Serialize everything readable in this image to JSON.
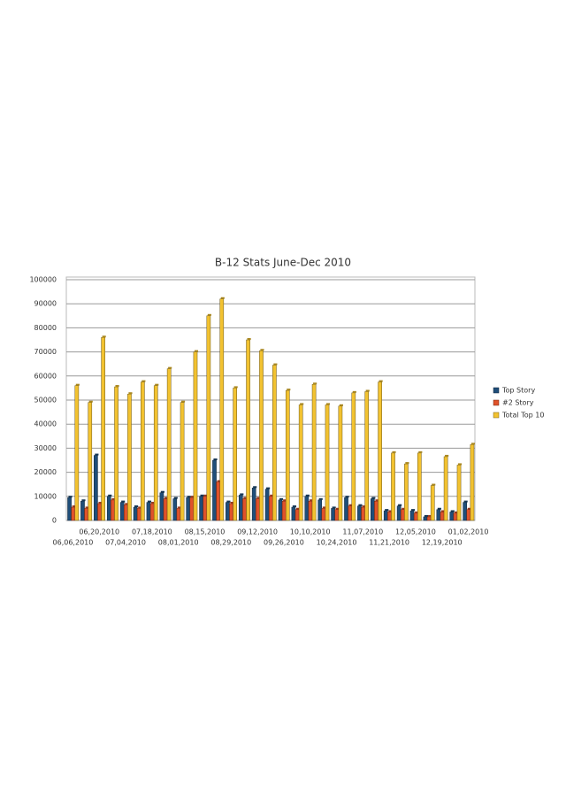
{
  "chart_data": {
    "type": "bar",
    "title": "B-12 Stats June-Dec 2010",
    "categories": [
      "06,06,2010",
      null,
      "06,20,2010",
      null,
      "07,04,2010",
      null,
      "07,18,2010",
      null,
      "08,01,2010",
      null,
      "08,15,2010",
      null,
      "08,29,2010",
      null,
      "09,12,2010",
      null,
      "09,26,2010",
      null,
      "10,10,2010",
      null,
      "10,24,2010",
      null,
      "11,07,2010",
      null,
      "11,21,2010",
      null,
      "12,05,2010",
      null,
      "12,19,2010",
      null,
      "01,02,2010"
    ],
    "series": [
      {
        "name": "Top Story",
        "color": "#1f4e79",
        "values": [
          9500,
          8000,
          27000,
          10000,
          7500,
          5500,
          7500,
          11500,
          9000,
          9500,
          10000,
          25000,
          7500,
          10500,
          13500,
          13000,
          8500,
          5500,
          10000,
          8500,
          5000,
          9500,
          6000,
          9000,
          4000,
          6000,
          4000,
          1500,
          4500,
          3500,
          7500
        ]
      },
      {
        "name": "#2 Story",
        "color": "#e0522a",
        "values": [
          5500,
          5000,
          7000,
          8500,
          6500,
          5000,
          7000,
          9000,
          5000,
          9500,
          10000,
          16000,
          7000,
          9000,
          9000,
          10000,
          8000,
          4500,
          8000,
          5000,
          4500,
          6000,
          5500,
          8000,
          3500,
          4500,
          3000,
          1500,
          3500,
          3000,
          4500
        ]
      },
      {
        "name": "Total Top 10",
        "color": "#f2c230",
        "values": [
          56000,
          49000,
          76000,
          55500,
          52500,
          57500,
          56000,
          63000,
          49000,
          70000,
          85000,
          92000,
          55000,
          75000,
          70500,
          64500,
          54000,
          48000,
          56500,
          48000,
          47500,
          53000,
          53500,
          57500,
          28000,
          23500,
          28000,
          14500,
          26500,
          23000,
          31500
        ]
      }
    ],
    "ylim": [
      0,
      100000
    ],
    "yticks": [
      0,
      10000,
      20000,
      30000,
      40000,
      50000,
      60000,
      70000,
      80000,
      90000,
      100000
    ],
    "grid": true,
    "legend": "right"
  }
}
